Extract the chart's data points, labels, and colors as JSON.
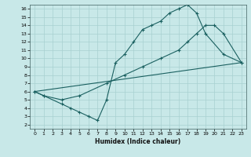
{
  "title": "",
  "xlabel": "Humidex (Indice chaleur)",
  "bg_color": "#c8e8e8",
  "grid_color": "#a8d0d0",
  "line_color": "#1a6060",
  "xlim": [
    -0.5,
    23.5
  ],
  "ylim": [
    1.5,
    16.5
  ],
  "xticks": [
    0,
    1,
    2,
    3,
    4,
    5,
    6,
    7,
    8,
    9,
    10,
    11,
    12,
    13,
    14,
    15,
    16,
    17,
    18,
    19,
    20,
    21,
    22,
    23
  ],
  "yticks": [
    2,
    3,
    4,
    5,
    6,
    7,
    8,
    9,
    10,
    11,
    12,
    13,
    14,
    15,
    16
  ],
  "line1_x": [
    0,
    1,
    3,
    4,
    5,
    6,
    7,
    8,
    9,
    10,
    11,
    12,
    13,
    14,
    15,
    16,
    17,
    18,
    19,
    21,
    23
  ],
  "line1_y": [
    6,
    5.5,
    4.5,
    4,
    3.5,
    3,
    2.5,
    5,
    9.5,
    10.5,
    12,
    13.5,
    14,
    14.5,
    15.5,
    16,
    16.5,
    15.5,
    13,
    10.5,
    9.5
  ],
  "line2_x": [
    0,
    23
  ],
  "line2_y": [
    6,
    9.5
  ],
  "line3_x": [
    0,
    1,
    3,
    5,
    8,
    10,
    12,
    14,
    16,
    17,
    18,
    19,
    20,
    21,
    23
  ],
  "line3_y": [
    6,
    5.5,
    5,
    5.5,
    7,
    8,
    9,
    10,
    11,
    12,
    13,
    14,
    14,
    13,
    9.5
  ],
  "figsize": [
    3.2,
    2.0
  ],
  "dpi": 100
}
